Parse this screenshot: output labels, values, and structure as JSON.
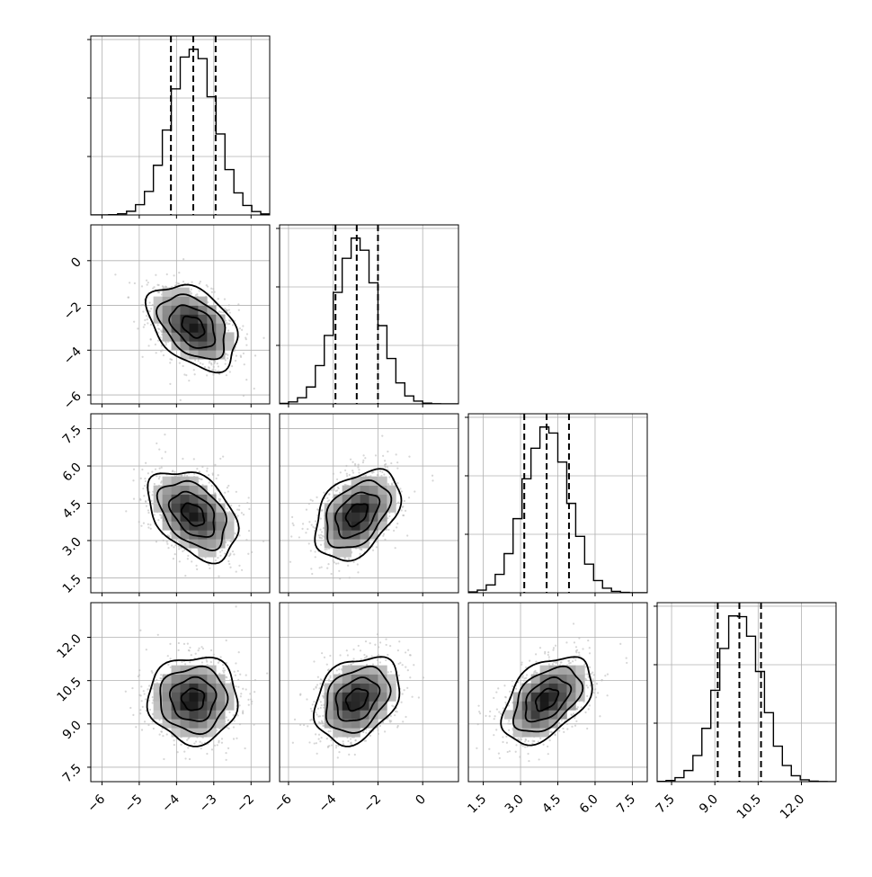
{
  "chart_data": {
    "type": "corner",
    "parameters": [
      {
        "range": [
          -6.3,
          -1.5
        ],
        "ticks": [
          -6,
          -5,
          -4,
          -3,
          -2
        ],
        "tick_labels": [
          "−6",
          "−5",
          "−4",
          "−3",
          "−2"
        ],
        "mean": -3.55,
        "std": 0.6,
        "quantiles": [
          -4.15,
          -3.55,
          -2.95
        ]
      },
      {
        "range": [
          -6.4,
          1.6
        ],
        "ticks": [
          -6,
          -4,
          -2,
          0
        ],
        "tick_labels": [
          "−6",
          "−4",
          "−2",
          "0"
        ],
        "mean": -2.95,
        "std": 0.95,
        "quantiles": [
          -3.9,
          -2.95,
          -2.0
        ]
      },
      {
        "range": [
          0.9,
          8.1
        ],
        "ticks": [
          1.5,
          3.0,
          4.5,
          6.0,
          7.5
        ],
        "tick_labels": [
          "1.5",
          "3.0",
          "4.5",
          "6.0",
          "7.5"
        ],
        "mean": 4.05,
        "std": 0.9,
        "quantiles": [
          3.15,
          4.05,
          4.95
        ]
      },
      {
        "range": [
          7.0,
          13.2
        ],
        "ticks": [
          7.5,
          9.0,
          10.5,
          12.0
        ],
        "tick_labels": [
          "7.5",
          "9.0",
          "10.5",
          "12.0"
        ],
        "mean": 9.85,
        "std": 0.75,
        "quantiles": [
          9.1,
          9.85,
          10.6
        ]
      }
    ],
    "correlations": [
      [
        1.0,
        -0.4,
        -0.4,
        0.0
      ],
      [
        -0.4,
        1.0,
        0.4,
        0.3
      ],
      [
        -0.4,
        0.4,
        1.0,
        0.45
      ],
      [
        0.0,
        0.3,
        0.45,
        1.0
      ]
    ],
    "histogram_bins": 20,
    "quantile_style": "dashed",
    "contour_levels_sigma": [
      0.5,
      1.0,
      1.5,
      2.0
    ],
    "grid": true,
    "scatter_color": "#bbbbbb",
    "line_color": "#000000"
  }
}
